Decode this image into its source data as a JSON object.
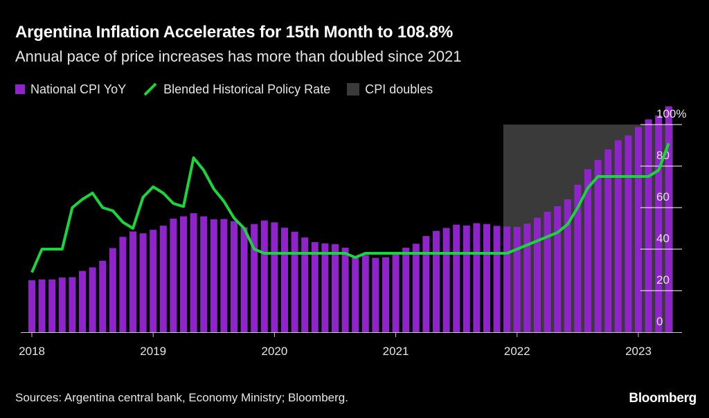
{
  "title": "Argentina Inflation Accelerates for 15th Month to 108.8%",
  "subtitle": "Annual pace of price increases has more than doubled since 2021",
  "source": "Sources: Argentina central bank, Economy Ministry; Bloomberg.",
  "brand": "Bloomberg",
  "colors": {
    "cpi_bar": "#8e24c9",
    "policy_line": "#19d63a",
    "shade": "#3a3a3a",
    "grid": "#ffffff"
  },
  "chart_data": {
    "type": "bar",
    "ylim": [
      0,
      108
    ],
    "y_ticks": [
      0,
      20,
      40,
      60,
      80,
      100
    ],
    "y_tick_labels": [
      "0",
      "20",
      "40",
      "60",
      "80",
      "100%"
    ],
    "x_ticks": [
      "2018",
      "2019",
      "2020",
      "2021",
      "2022",
      "2023"
    ],
    "x_range": [
      "2018-01",
      "2023-04"
    ],
    "legend": {
      "position": "top-left",
      "items": [
        {
          "label": "National CPI YoY",
          "kind": "bar"
        },
        {
          "label": "Blended Historical Policy Rate",
          "kind": "line"
        },
        {
          "label": "CPI doubles",
          "kind": "shade"
        }
      ]
    },
    "shaded_region": {
      "label": "CPI doubles",
      "x_start": "2021-12",
      "x_end": "2023-04",
      "y_top": 100
    },
    "series": [
      {
        "name": "National CPI YoY",
        "type": "bar",
        "x": [
          "2018-01",
          "2018-02",
          "2018-03",
          "2018-04",
          "2018-05",
          "2018-06",
          "2018-07",
          "2018-08",
          "2018-09",
          "2018-10",
          "2018-11",
          "2018-12",
          "2019-01",
          "2019-02",
          "2019-03",
          "2019-04",
          "2019-05",
          "2019-06",
          "2019-07",
          "2019-08",
          "2019-09",
          "2019-10",
          "2019-11",
          "2019-12",
          "2020-01",
          "2020-02",
          "2020-03",
          "2020-04",
          "2020-05",
          "2020-06",
          "2020-07",
          "2020-08",
          "2020-09",
          "2020-10",
          "2020-11",
          "2020-12",
          "2021-01",
          "2021-02",
          "2021-03",
          "2021-04",
          "2021-05",
          "2021-06",
          "2021-07",
          "2021-08",
          "2021-09",
          "2021-10",
          "2021-11",
          "2021-12",
          "2022-01",
          "2022-02",
          "2022-03",
          "2022-04",
          "2022-05",
          "2022-06",
          "2022-07",
          "2022-08",
          "2022-09",
          "2022-10",
          "2022-11",
          "2022-12",
          "2023-01",
          "2023-02",
          "2023-03",
          "2023-04"
        ],
        "values": [
          25.0,
          25.4,
          25.4,
          26.3,
          26.5,
          29.5,
          31.2,
          34.4,
          40.5,
          45.9,
          48.5,
          47.6,
          49.3,
          51.3,
          54.7,
          55.8,
          57.3,
          55.8,
          54.4,
          54.5,
          53.5,
          50.5,
          52.1,
          53.8,
          52.9,
          50.3,
          48.4,
          45.6,
          43.4,
          42.8,
          42.4,
          40.7,
          36.6,
          37.2,
          35.8,
          36.1,
          38.5,
          40.7,
          42.6,
          46.3,
          48.8,
          50.2,
          51.8,
          51.4,
          52.5,
          52.1,
          51.2,
          50.9,
          50.7,
          52.3,
          55.1,
          58.0,
          60.7,
          64.0,
          71.0,
          78.5,
          83.0,
          88.0,
          92.4,
          94.8,
          98.8,
          102.5,
          104.3,
          108.8
        ]
      },
      {
        "name": "Blended Historical Policy Rate",
        "type": "line",
        "x": [
          "2018-01",
          "2018-02",
          "2018-03",
          "2018-04",
          "2018-05",
          "2018-06",
          "2018-07",
          "2018-08",
          "2018-09",
          "2018-10",
          "2018-11",
          "2018-12",
          "2019-01",
          "2019-02",
          "2019-03",
          "2019-04",
          "2019-05",
          "2019-06",
          "2019-07",
          "2019-08",
          "2019-09",
          "2019-10",
          "2019-11",
          "2019-12",
          "2020-01",
          "2020-02",
          "2020-03",
          "2020-04",
          "2020-05",
          "2020-06",
          "2020-07",
          "2020-08",
          "2020-09",
          "2020-10",
          "2020-11",
          "2020-12",
          "2021-01",
          "2021-02",
          "2021-03",
          "2021-04",
          "2021-05",
          "2021-06",
          "2021-07",
          "2021-08",
          "2021-09",
          "2021-10",
          "2021-11",
          "2021-12",
          "2022-01",
          "2022-02",
          "2022-03",
          "2022-04",
          "2022-05",
          "2022-06",
          "2022-07",
          "2022-08",
          "2022-09",
          "2022-10",
          "2022-11",
          "2022-12",
          "2023-01",
          "2023-02",
          "2023-03",
          "2023-04"
        ],
        "values": [
          28.8,
          40.0,
          40.0,
          40.0,
          60.0,
          64.0,
          67.0,
          60.0,
          58.5,
          53.0,
          50.0,
          65.0,
          70.0,
          67.0,
          62.0,
          60.5,
          84.0,
          78.0,
          69.0,
          63.0,
          55.0,
          50.0,
          40.0,
          38.0,
          38.0,
          38.0,
          38.0,
          38.0,
          38.0,
          38.0,
          38.0,
          38.0,
          36.0,
          38.0,
          38.0,
          38.0,
          38.0,
          38.0,
          38.0,
          38.0,
          38.0,
          38.0,
          38.0,
          38.0,
          38.0,
          38.0,
          38.0,
          38.0,
          40.0,
          42.0,
          44.0,
          46.0,
          48.0,
          52.0,
          60.0,
          69.5,
          75.0,
          75.0,
          75.0,
          75.0,
          75.0,
          75.0,
          78.0,
          91.0
        ]
      }
    ]
  }
}
